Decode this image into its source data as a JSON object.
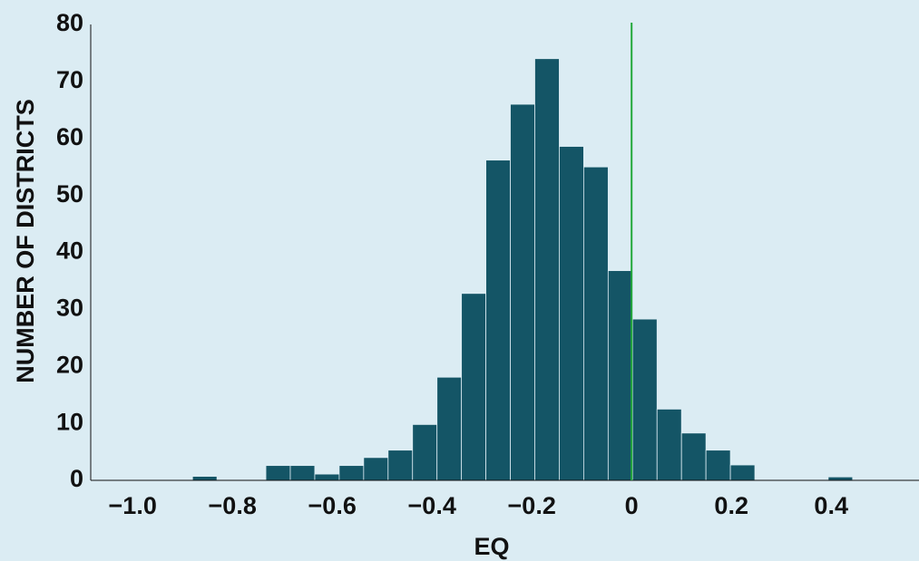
{
  "chart_data": {
    "type": "histogram",
    "xlabel": "EQ",
    "ylabel": "NUMBER OF DISTRICTS",
    "bins": [
      -0.88,
      -0.831,
      -0.782,
      -0.733,
      -0.684,
      -0.635,
      -0.586,
      -0.537,
      -0.488,
      -0.439,
      -0.39,
      -0.341,
      -0.292,
      -0.243,
      -0.194,
      -0.145,
      -0.096,
      -0.047,
      0.002,
      0.051,
      0.1,
      0.149,
      0.198,
      0.247,
      0.296,
      0.345,
      0.394,
      0.443
    ],
    "counts": [
      0.7,
      0,
      0,
      2.6,
      2.6,
      1.1,
      2.6,
      4,
      5.3,
      9.8,
      18.1,
      32.8,
      56.2,
      66,
      74,
      58.6,
      55,
      36.8,
      28.3,
      12.5,
      8.3,
      5.3,
      2.7,
      0,
      0,
      0,
      0.6
    ],
    "color": "#145566",
    "xlim": [
      -1.084,
      0.576
    ],
    "ylim": [
      0,
      80
    ],
    "xticks": [
      {
        "value": -1.0,
        "label": "−1.0"
      },
      {
        "value": -0.8,
        "label": "−0.8"
      },
      {
        "value": -0.6,
        "label": "−0.6"
      },
      {
        "value": -0.4,
        "label": "−0.4"
      },
      {
        "value": -0.2,
        "label": "−0.2"
      },
      0,
      0.2,
      0.4
    ],
    "yticks": [
      0,
      10,
      20,
      30,
      40,
      50,
      60,
      70,
      80
    ],
    "vline": 0,
    "vline_color": "#22a83a"
  }
}
